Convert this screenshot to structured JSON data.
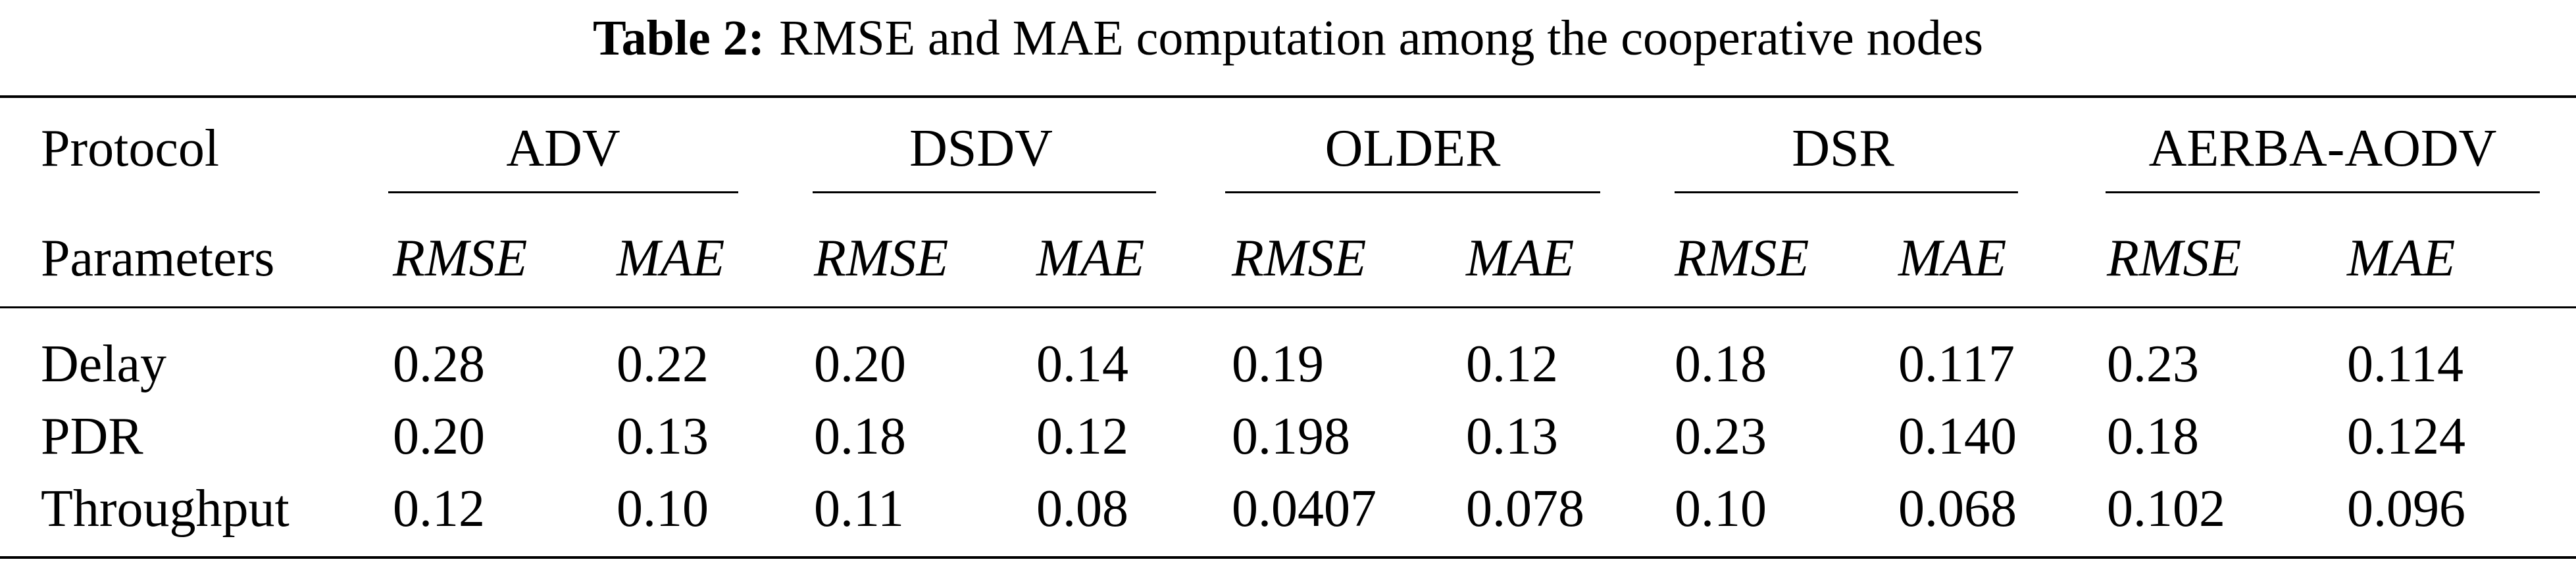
{
  "caption": {
    "label": "Table 2:",
    "text": "RMSE and MAE computation among the cooperative nodes"
  },
  "header": {
    "row1_label": "Protocol",
    "row2_label": "Parameters",
    "groups": [
      "ADV",
      "DSDV",
      "OLDER",
      "DSR",
      "AERBA-AODV"
    ],
    "metric_labels": [
      "RMSE",
      "MAE"
    ]
  },
  "rows": [
    {
      "label": "Delay",
      "values": [
        "0.28",
        "0.22",
        "0.20",
        "0.14",
        "0.19",
        "0.12",
        "0.18",
        "0.117",
        "0.23",
        "0.114"
      ]
    },
    {
      "label": "PDR",
      "values": [
        "0.20",
        "0.13",
        "0.18",
        "0.12",
        "0.198",
        "0.13",
        "0.23",
        "0.140",
        "0.18",
        "0.124"
      ]
    },
    {
      "label": "Throughput",
      "values": [
        "0.12",
        "0.10",
        "0.11",
        "0.08",
        "0.0407",
        "0.078",
        "0.10",
        "0.068",
        "0.102",
        "0.096"
      ]
    }
  ]
}
